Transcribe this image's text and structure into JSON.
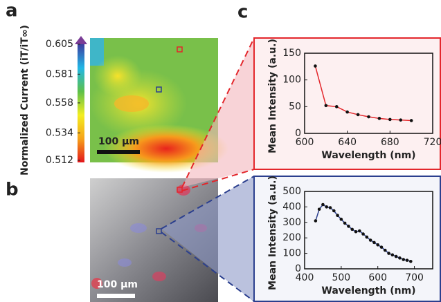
{
  "panel_labels": [
    "a",
    "b",
    "c"
  ],
  "colorbar": {
    "label": "Normalized Current (iT/iT∞)",
    "lim": [
      0.512,
      0.605
    ],
    "ticks": [
      0.605,
      0.581,
      0.558,
      0.534,
      0.512
    ]
  },
  "scale_bars": [
    "100 µm",
    "100 µm"
  ],
  "chart_data": [
    {
      "type": "line",
      "xlabel": "Wavelength (nm)",
      "ylabel": "Mean Intensity (a.u.)",
      "x": [
        610,
        620,
        630,
        640,
        650,
        660,
        670,
        680,
        690,
        700
      ],
      "series": [
        {
          "color": "#e3262b",
          "values": [
            126,
            52,
            50,
            40,
            35,
            31,
            28,
            26,
            25,
            24
          ]
        }
      ],
      "xlim": [
        600,
        720
      ],
      "xticks": [
        600,
        640,
        680,
        720
      ],
      "ylim": [
        0,
        150
      ],
      "yticks": [
        0,
        50,
        100,
        150
      ]
    },
    {
      "type": "line",
      "xlabel": "Wavelength (nm)",
      "ylabel": "Mean Intensity (a.u.)",
      "x": [
        430,
        440,
        450,
        460,
        470,
        480,
        490,
        500,
        510,
        520,
        530,
        540,
        550,
        560,
        570,
        580,
        590,
        600,
        610,
        620,
        630,
        640,
        650,
        660,
        670,
        680,
        690
      ],
      "series": [
        {
          "color": "#2b3f8e",
          "values": [
            310,
            385,
            415,
            400,
            395,
            375,
            345,
            320,
            295,
            275,
            255,
            240,
            245,
            225,
            205,
            185,
            170,
            155,
            140,
            120,
            100,
            90,
            80,
            70,
            60,
            55,
            48
          ]
        }
      ],
      "xlim": [
        400,
        750
      ],
      "xticks": [
        400,
        500,
        600,
        700
      ],
      "ylim": [
        0,
        500
      ],
      "yticks": [
        0,
        100,
        200,
        300,
        400,
        500
      ]
    }
  ]
}
